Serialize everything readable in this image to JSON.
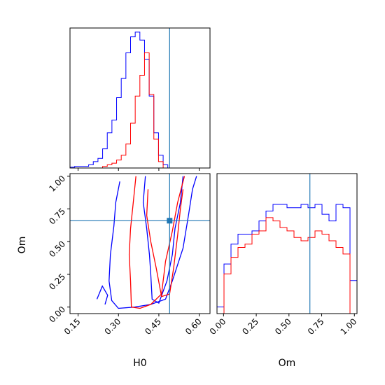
{
  "chart_data": {
    "type": "corner",
    "series_colors": {
      "blue": "#0000ff",
      "red": "#ff0000",
      "truth": "#1f77b4"
    },
    "truth": {
      "H0": 0.49,
      "Om": 0.66
    },
    "xlabel_H0": "H0",
    "xlabel_Om": "Om",
    "ylabel_Om": "Om",
    "h0_range": [
      0.12,
      0.64
    ],
    "om_range": [
      -0.05,
      1.02
    ],
    "h0_ticks": [
      0.15,
      0.3,
      0.45,
      0.6
    ],
    "h0_tick_labels": [
      "0.15",
      "0.30",
      "0.45",
      "0.60"
    ],
    "om_ticks": [
      0.0,
      0.25,
      0.5,
      0.75,
      1.0
    ],
    "om_tick_labels": [
      "0.00",
      "0.25",
      "0.50",
      "0.75",
      "1.00"
    ],
    "hist_H0": {
      "bin_start": 0.12,
      "bin_width": 0.0173,
      "blue": [
        0.5,
        1,
        1,
        1,
        2,
        4,
        6,
        12,
        22,
        30,
        44,
        56,
        72,
        82,
        85,
        80,
        68,
        45,
        22,
        8,
        2
      ],
      "red": [
        0,
        0,
        0,
        0,
        0,
        0,
        0,
        1,
        2,
        3,
        5,
        8,
        15,
        28,
        45,
        58,
        72,
        46,
        18,
        4,
        0
      ]
    },
    "hist_Om": {
      "bin_start": -0.05,
      "bin_width": 0.0535,
      "blue": [
        4,
        30,
        42,
        48,
        48,
        50,
        56,
        62,
        66,
        66,
        64,
        64,
        66,
        64,
        66,
        60,
        56,
        66,
        64,
        20
      ],
      "red": [
        0,
        24,
        34,
        40,
        42,
        48,
        50,
        58,
        56,
        52,
        50,
        46,
        44,
        46,
        50,
        48,
        44,
        40,
        36,
        0
      ]
    },
    "contours": {
      "blue": [
        [
          [
            0.305,
            0.96
          ],
          [
            0.29,
            0.8
          ],
          [
            0.283,
            0.62
          ],
          [
            0.27,
            0.4
          ],
          [
            0.265,
            0.2
          ],
          [
            0.275,
            0.05
          ],
          [
            0.3,
            -0.01
          ],
          [
            0.36,
            0.0
          ],
          [
            0.42,
            0.02
          ],
          [
            0.475,
            0.06
          ],
          [
            0.5,
            0.2
          ],
          [
            0.54,
            0.45
          ],
          [
            0.56,
            0.7
          ],
          [
            0.575,
            0.9
          ],
          [
            0.59,
            1.0
          ]
        ],
        [
          [
            0.4,
            1.0
          ],
          [
            0.392,
            0.8
          ],
          [
            0.405,
            0.6
          ],
          [
            0.415,
            0.4
          ],
          [
            0.42,
            0.25
          ],
          [
            0.425,
            0.06
          ],
          [
            0.45,
            0.03
          ],
          [
            0.48,
            0.2
          ],
          [
            0.5,
            0.4
          ],
          [
            0.51,
            0.6
          ],
          [
            0.53,
            0.8
          ],
          [
            0.54,
            1.0
          ]
        ],
        [
          [
            0.22,
            0.06
          ],
          [
            0.24,
            0.16
          ],
          [
            0.26,
            0.09
          ],
          [
            0.25,
            0.02
          ]
        ]
      ],
      "red": [
        [
          [
            0.365,
            1.0
          ],
          [
            0.355,
            0.8
          ],
          [
            0.345,
            0.6
          ],
          [
            0.34,
            0.4
          ],
          [
            0.345,
            0.2
          ],
          [
            0.348,
            0.0
          ],
          [
            0.38,
            -0.01
          ],
          [
            0.42,
            0.02
          ],
          [
            0.46,
            0.1
          ],
          [
            0.475,
            0.35
          ],
          [
            0.5,
            0.58
          ],
          [
            0.52,
            0.8
          ],
          [
            0.545,
            1.0
          ]
        ],
        [
          [
            0.41,
            0.9
          ],
          [
            0.405,
            0.7
          ],
          [
            0.42,
            0.5
          ],
          [
            0.44,
            0.3
          ],
          [
            0.46,
            0.08
          ],
          [
            0.49,
            0.1
          ],
          [
            0.505,
            0.3
          ],
          [
            0.52,
            0.55
          ],
          [
            0.53,
            0.75
          ],
          [
            0.54,
            0.9
          ]
        ]
      ]
    }
  }
}
